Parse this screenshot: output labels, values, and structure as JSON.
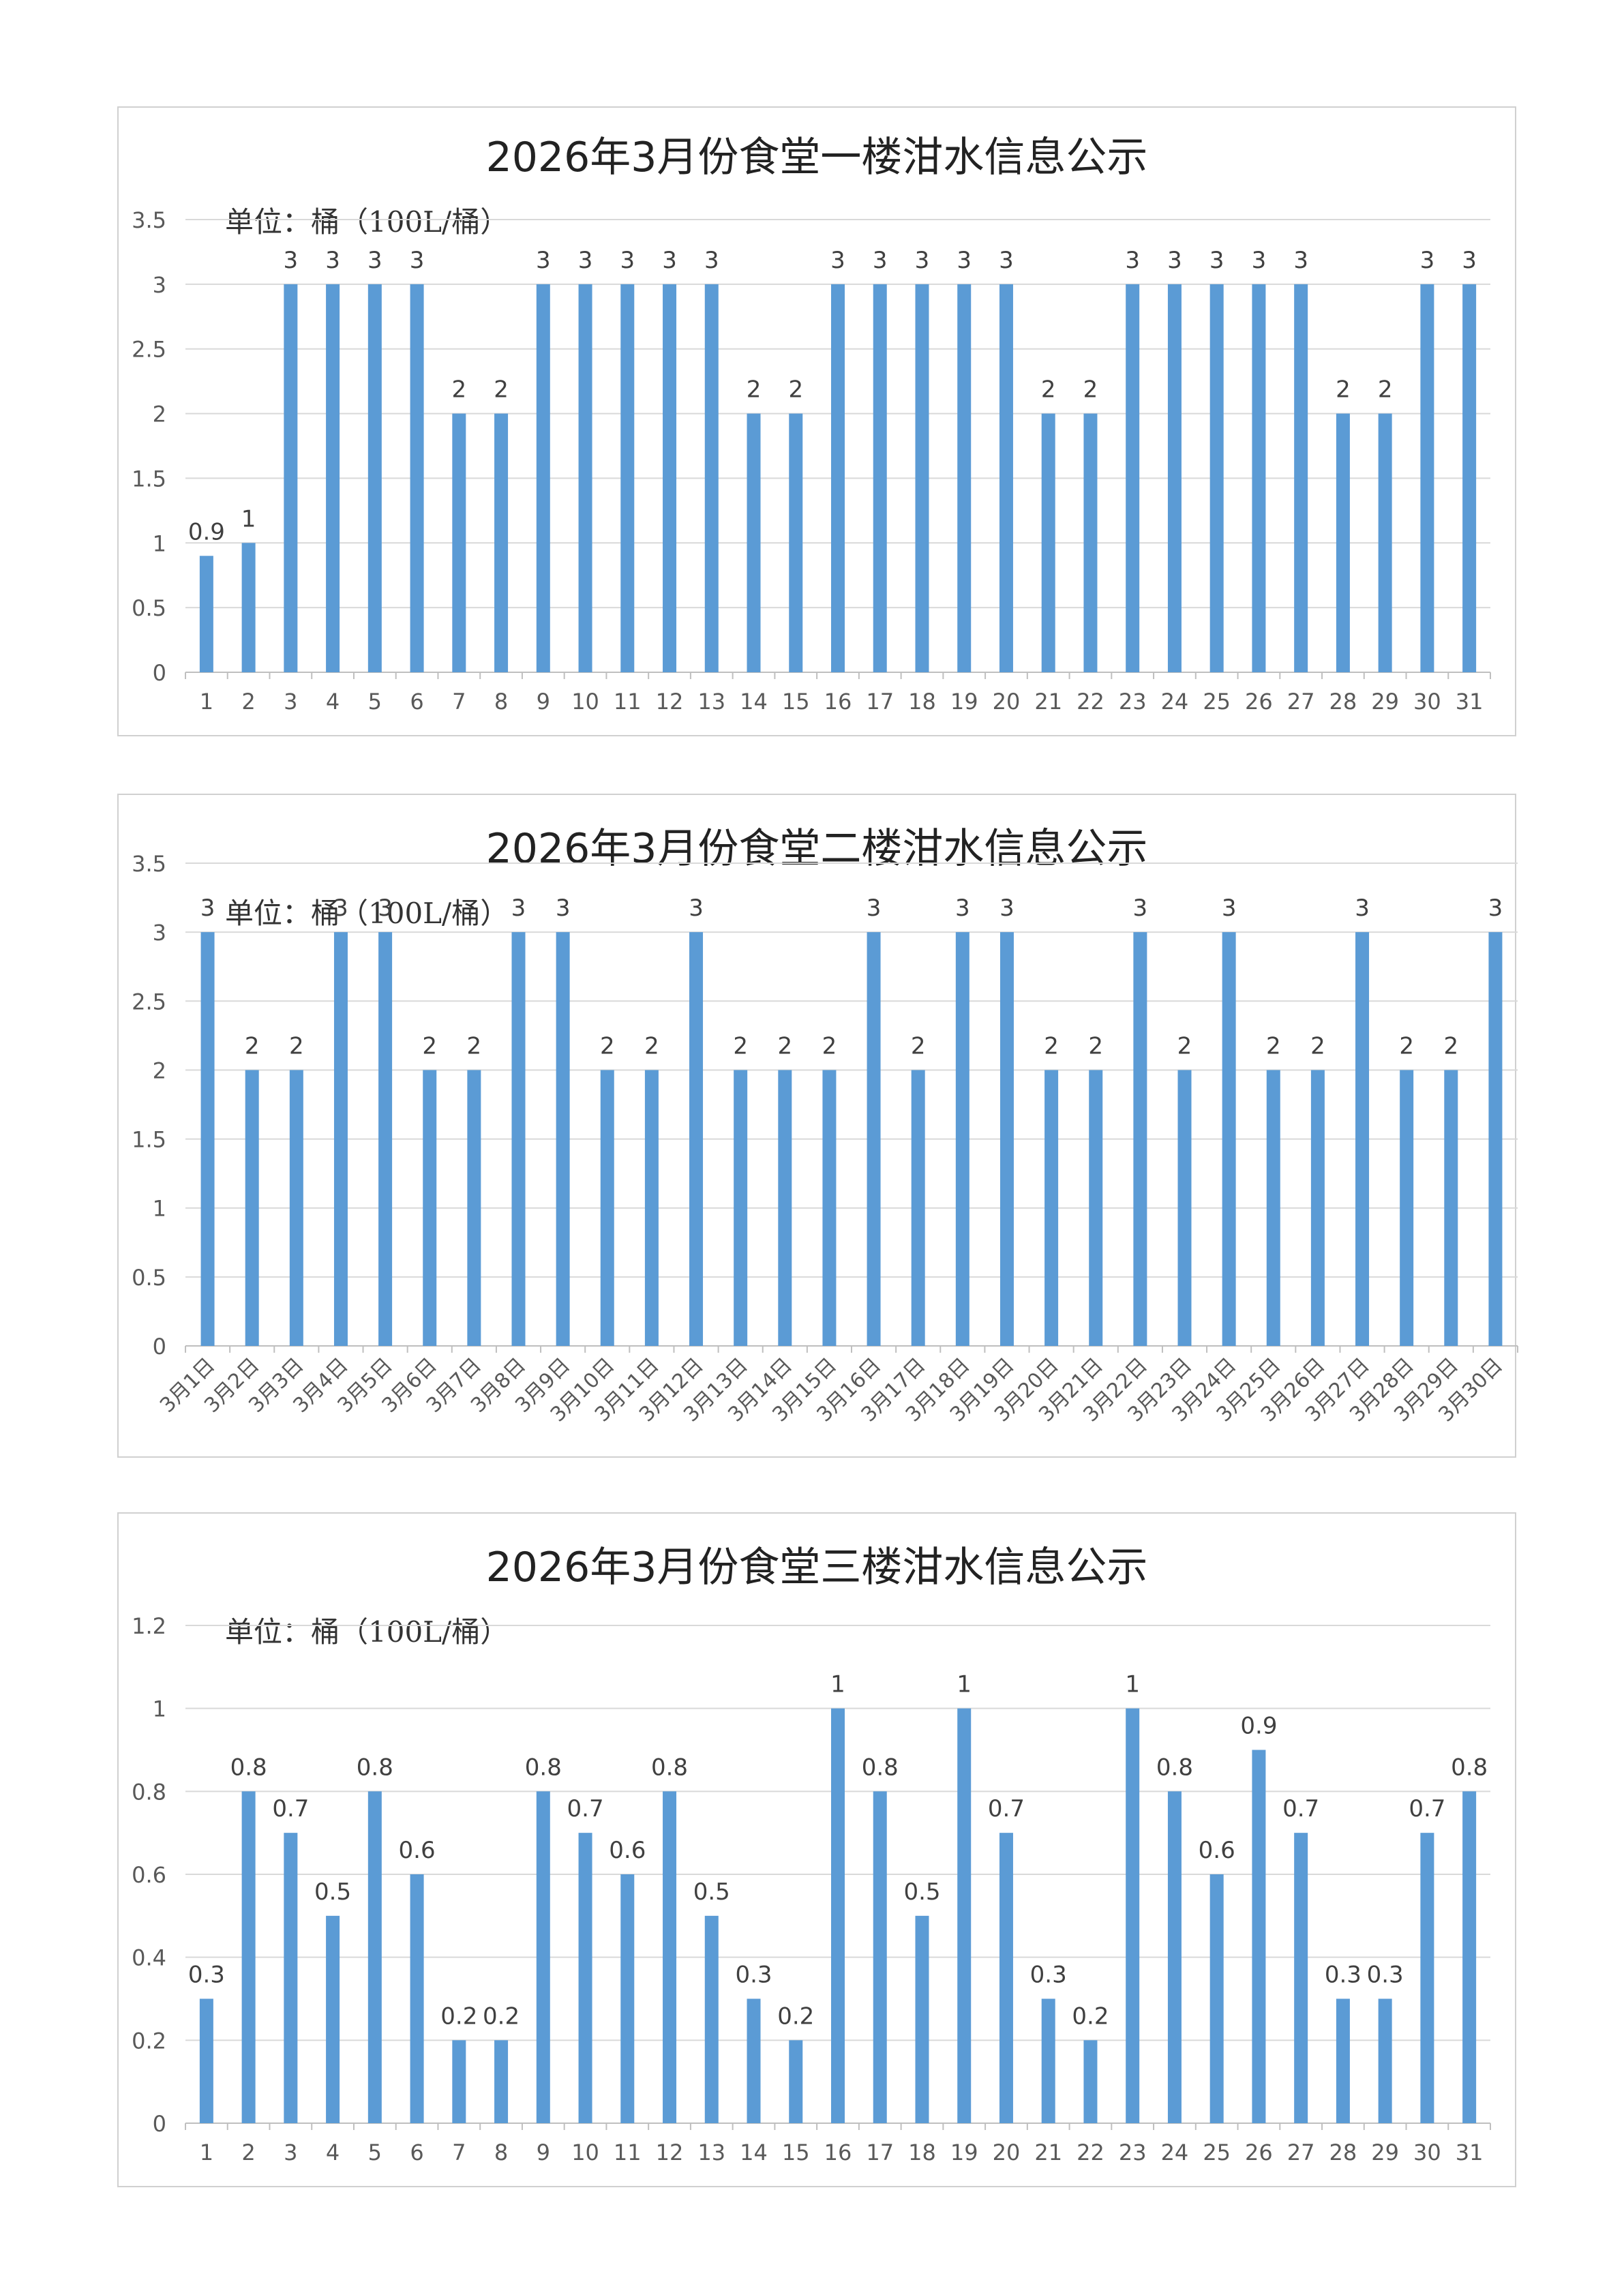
{
  "colors": {
    "bar": "#5b9bd5",
    "grid": "#d9d9d9",
    "axis": "#bfbfbf",
    "label": "#595959",
    "value": "#404040"
  },
  "chart_data": [
    {
      "type": "bar",
      "title": "2026年3月份食堂一楼泔水信息公示",
      "unit_note": "单位：桶（100L/桶）",
      "categories": [
        "1",
        "2",
        "3",
        "4",
        "5",
        "6",
        "7",
        "8",
        "9",
        "10",
        "11",
        "12",
        "13",
        "14",
        "15",
        "16",
        "17",
        "18",
        "19",
        "20",
        "21",
        "22",
        "23",
        "24",
        "25",
        "26",
        "27",
        "28",
        "29",
        "30",
        "31"
      ],
      "values": [
        0.9,
        1,
        3,
        3,
        3,
        3,
        2,
        2,
        3,
        3,
        3,
        3,
        3,
        2,
        2,
        3,
        3,
        3,
        3,
        3,
        2,
        2,
        3,
        3,
        3,
        3,
        3,
        2,
        2,
        3,
        3
      ],
      "ylim": [
        0,
        3.5
      ],
      "yticks": [
        "0",
        "0.5",
        "1",
        "1.5",
        "2",
        "2.5",
        "3",
        "3.5"
      ],
      "grid": true,
      "legend": "none"
    },
    {
      "type": "bar",
      "title": "2026年3月份食堂二楼泔水信息公示",
      "unit_note": "单位：桶（100L/桶）",
      "categories": [
        "3月1日",
        "3月2日",
        "3月3日",
        "3月4日",
        "3月5日",
        "3月6日",
        "3月7日",
        "3月8日",
        "3月9日",
        "3月10日",
        "3月11日",
        "3月12日",
        "3月13日",
        "3月14日",
        "3月15日",
        "3月16日",
        "3月17日",
        "3月18日",
        "3月19日",
        "3月20日",
        "3月21日",
        "3月22日",
        "3月23日",
        "3月24日",
        "3月25日",
        "3月26日",
        "3月27日",
        "3月28日",
        "3月29日",
        "3月30日"
      ],
      "values": [
        3,
        2,
        2,
        3,
        3,
        2,
        2,
        3,
        3,
        2,
        2,
        3,
        2,
        2,
        2,
        3,
        2,
        3,
        3,
        2,
        2,
        3,
        2,
        3,
        2,
        2,
        3,
        2,
        2,
        3
      ],
      "ylim": [
        0,
        3.5
      ],
      "yticks": [
        "0",
        "0.5",
        "1",
        "1.5",
        "2",
        "2.5",
        "3",
        "3.5"
      ],
      "grid": true,
      "legend": "none"
    },
    {
      "type": "bar",
      "title": "2026年3月份食堂三楼泔水信息公示",
      "unit_note": "单位：桶（100L/桶）",
      "categories": [
        "1",
        "2",
        "3",
        "4",
        "5",
        "6",
        "7",
        "8",
        "9",
        "10",
        "11",
        "12",
        "13",
        "14",
        "15",
        "16",
        "17",
        "18",
        "19",
        "20",
        "21",
        "22",
        "23",
        "24",
        "25",
        "26",
        "27",
        "28",
        "29",
        "30",
        "31"
      ],
      "values": [
        0.3,
        0.8,
        0.7,
        0.5,
        0.8,
        0.6,
        0.2,
        0.2,
        0.8,
        0.7,
        0.6,
        0.8,
        0.5,
        0.3,
        0.2,
        1,
        0.8,
        0.5,
        1,
        0.7,
        0.3,
        0.2,
        1,
        0.8,
        0.6,
        0.9,
        0.7,
        0.3,
        0.3,
        0.7,
        0.8
      ],
      "ylim": [
        0,
        1.2
      ],
      "yticks": [
        "0",
        "0.2",
        "0.4",
        "0.6",
        "0.8",
        "1",
        "1.2"
      ],
      "grid": true,
      "legend": "none"
    }
  ]
}
